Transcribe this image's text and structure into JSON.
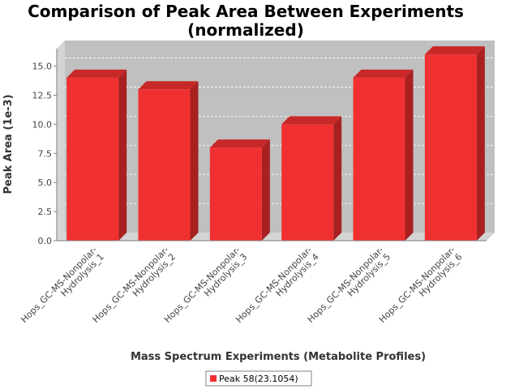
{
  "chart_data": {
    "type": "bar",
    "title_line1": "Comparison of Peak Area Between Experiments",
    "title_line2": "(normalized)",
    "xlabel": "Mass Spectrum Experiments (Metabolite Profiles)",
    "ylabel": "Peak Area (1e-3)",
    "ylim": [
      0,
      16.5
    ],
    "yticks": [
      "0.0",
      "2.5",
      "5.0",
      "7.5",
      "10.0",
      "12.5",
      "15.0"
    ],
    "categories": [
      [
        "Hops_GC-MS-Nonpolar-",
        "Hydrolysis_1"
      ],
      [
        "Hops_GC-MS-Nonpolar-",
        "Hydrolysis_2"
      ],
      [
        "Hops_GC-MS-Nonpolar-",
        "Hydrolysis_3"
      ],
      [
        "Hops_GC-MS-Nonpolar-",
        "Hydrolysis_4"
      ],
      [
        "Hops_GC-MS-Nonpolar-",
        "Hydrolysis_5"
      ],
      [
        "Hops_GC-MS-Nonpolar-",
        "Hydrolysis_6"
      ]
    ],
    "series": [
      {
        "name": "Peak 58(23.1054)",
        "values": [
          14,
          13,
          8,
          10,
          14,
          16
        ]
      }
    ],
    "grid": true,
    "legend": "bottom-center",
    "colors": {
      "bar_front": "#f03030",
      "bar_top": "#c82828",
      "bar_side": "#a82020",
      "plot_bg": "#c0c0c0",
      "plot_wall": "#d4d4d4"
    }
  }
}
